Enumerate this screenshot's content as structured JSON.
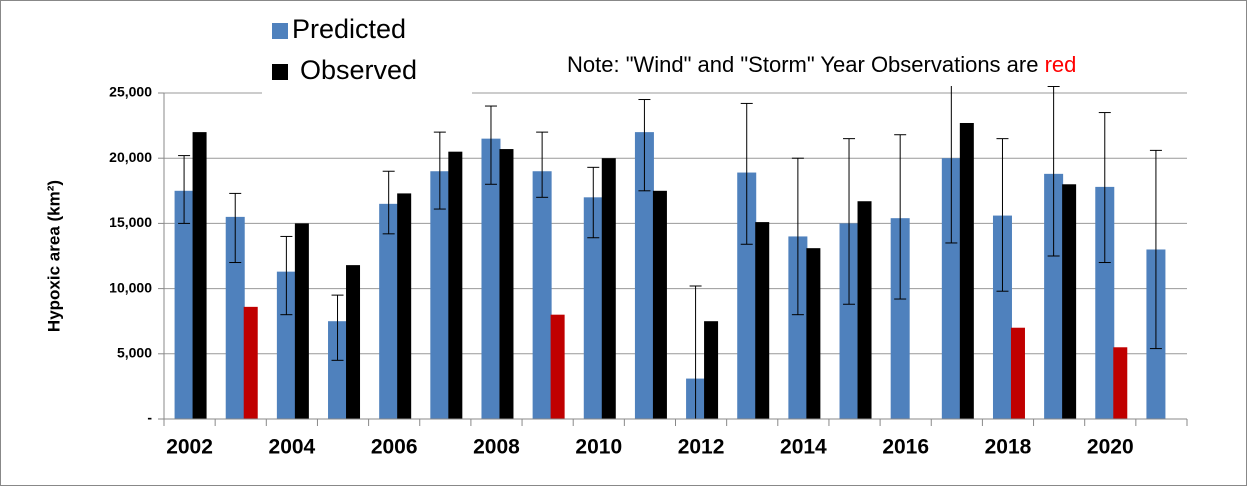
{
  "chart_data": {
    "type": "bar",
    "y_label": "Hypoxic area (km²)",
    "annotation": {
      "text": "Note: \"Wind\" and \"Storm\" Year Observations are ",
      "highlight": "red",
      "highlight_color": "#ff0000"
    },
    "categories": [
      "2002",
      null,
      "2004",
      null,
      "2006",
      null,
      "2008",
      null,
      "2010",
      null,
      "2012",
      null,
      "2014",
      null,
      "2016",
      null,
      "2018",
      null,
      "2020",
      null
    ],
    "series": [
      {
        "name": "Predicted",
        "color": "#4f81bd",
        "values": [
          17500,
          15500,
          11300,
          7500,
          16500,
          19000,
          21500,
          19000,
          17000,
          22000,
          3100,
          18900,
          14000,
          15000,
          15400,
          20000,
          15600,
          18800,
          17800,
          13000
        ],
        "error_low": [
          15000,
          12000,
          8000,
          4500,
          14200,
          16100,
          18000,
          17000,
          13900,
          17500,
          0,
          13400,
          8000,
          8800,
          9200,
          13500,
          9800,
          12500,
          12000,
          5400
        ],
        "error_high": [
          20200,
          17300,
          14000,
          9500,
          19000,
          22000,
          24000,
          22000,
          19300,
          24500,
          10200,
          24200,
          20000,
          21500,
          21800,
          26500,
          21500,
          25500,
          23500,
          20600
        ]
      },
      {
        "name": "Observed",
        "color": "#000000",
        "values": [
          22000,
          8600,
          15000,
          11800,
          17300,
          20500,
          20700,
          8000,
          20000,
          17500,
          7500,
          15100,
          13100,
          16700,
          null,
          22700,
          7000,
          18000,
          5500,
          null
        ],
        "colors": [
          "#000000",
          "#c00000",
          "#000000",
          "#000000",
          "#000000",
          "#000000",
          "#000000",
          "#c00000",
          "#000000",
          "#000000",
          "#000000",
          "#000000",
          "#000000",
          "#000000",
          "#000000",
          "#000000",
          "#c00000",
          "#000000",
          "#c00000",
          "#000000"
        ]
      }
    ],
    "ylim": [
      0,
      25000
    ],
    "yticks": [
      {
        "value": 0,
        "label": "-"
      },
      {
        "value": 5000,
        "label": "5,000"
      },
      {
        "value": 10000,
        "label": "10,000"
      },
      {
        "value": 15000,
        "label": "15,000"
      },
      {
        "value": 20000,
        "label": "20,000"
      },
      {
        "value": 25000,
        "label": "25,000"
      }
    ],
    "grid": true
  }
}
